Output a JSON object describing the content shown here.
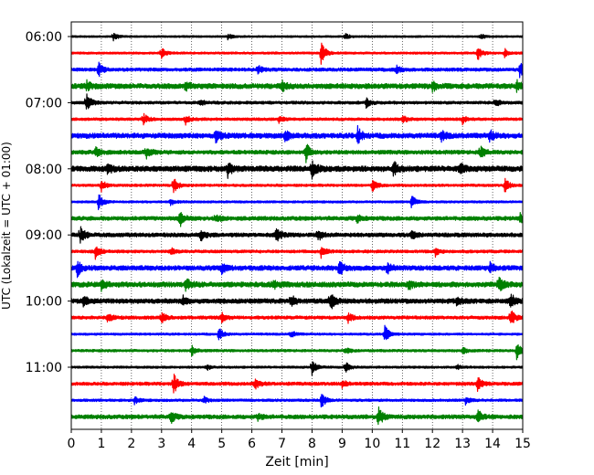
{
  "chart_data": {
    "type": "line",
    "title": "",
    "xlabel": "Zeit  [min]",
    "ylabel": "UTC (Lokalzeit = UTC + 01:00)",
    "xlim": [
      0,
      15
    ],
    "x_ticks": [
      0,
      1,
      2,
      3,
      4,
      5,
      6,
      7,
      8,
      9,
      10,
      11,
      12,
      13,
      14,
      15
    ],
    "x_tick_labels": [
      "0",
      "1",
      "2",
      "3",
      "4",
      "5",
      "6",
      "7",
      "8",
      "9",
      "10",
      "11",
      "12",
      "13",
      "14",
      "15"
    ],
    "grid": "vertical-dotted",
    "row_interval_min": 15,
    "y_ticks": [
      {
        "row": 0,
        "label": "06:00"
      },
      {
        "row": 4,
        "label": "07:00"
      },
      {
        "row": 8,
        "label": "08:00"
      },
      {
        "row": 12,
        "label": "09:00"
      },
      {
        "row": 16,
        "label": "10:00"
      },
      {
        "row": 20,
        "label": "11:00"
      }
    ],
    "color_cycle": [
      "#000000",
      "#ff0000",
      "#0000ff",
      "#008000"
    ],
    "traces": [
      {
        "start": "06:00",
        "noise": 0.1,
        "events": [
          [
            1.4,
            0.4
          ],
          [
            5.2,
            0.3
          ],
          [
            9.1,
            0.3
          ],
          [
            13.6,
            0.3
          ]
        ]
      },
      {
        "start": "06:15",
        "noise": 0.12,
        "events": [
          [
            3.0,
            0.6
          ],
          [
            8.3,
            1.3
          ],
          [
            13.5,
            0.8
          ],
          [
            14.4,
            0.5
          ]
        ]
      },
      {
        "start": "06:30",
        "noise": 0.18,
        "events": [
          [
            0.9,
            0.8
          ],
          [
            6.2,
            0.4
          ],
          [
            10.8,
            0.4
          ],
          [
            14.9,
            0.8
          ]
        ]
      },
      {
        "start": "06:45",
        "noise": 0.28,
        "events": [
          [
            0.5,
            0.5
          ],
          [
            3.8,
            0.5
          ],
          [
            7.0,
            0.5
          ],
          [
            12.0,
            0.5
          ],
          [
            14.8,
            0.5
          ]
        ]
      },
      {
        "start": "07:00",
        "noise": 0.16,
        "events": [
          [
            0.5,
            1.2
          ],
          [
            4.3,
            0.4
          ],
          [
            9.8,
            0.5
          ],
          [
            14.1,
            0.4
          ]
        ]
      },
      {
        "start": "07:15",
        "noise": 0.15,
        "events": [
          [
            2.4,
            0.6
          ],
          [
            3.8,
            0.5
          ],
          [
            6.9,
            0.4
          ],
          [
            11.0,
            0.5
          ],
          [
            13.0,
            0.5
          ]
        ]
      },
      {
        "start": "07:30",
        "noise": 0.28,
        "events": [
          [
            4.8,
            0.7
          ],
          [
            7.1,
            0.5
          ],
          [
            9.5,
            1.0
          ],
          [
            12.3,
            0.5
          ],
          [
            13.9,
            0.6
          ]
        ]
      },
      {
        "start": "07:45",
        "noise": 0.22,
        "events": [
          [
            0.8,
            0.6
          ],
          [
            2.5,
            0.7
          ],
          [
            7.8,
            1.0
          ],
          [
            13.6,
            0.8
          ]
        ]
      },
      {
        "start": "08:00",
        "noise": 0.3,
        "events": [
          [
            1.2,
            0.6
          ],
          [
            5.2,
            0.8
          ],
          [
            8.0,
            1.0
          ],
          [
            10.7,
            0.8
          ],
          [
            12.9,
            0.6
          ]
        ]
      },
      {
        "start": "08:15",
        "noise": 0.14,
        "events": [
          [
            1.0,
            0.6
          ],
          [
            3.4,
            1.0
          ],
          [
            10.0,
            0.8
          ],
          [
            14.4,
            0.8
          ]
        ]
      },
      {
        "start": "08:30",
        "noise": 0.12,
        "events": [
          [
            0.9,
            1.0
          ],
          [
            3.3,
            0.4
          ],
          [
            11.3,
            0.8
          ]
        ]
      },
      {
        "start": "08:45",
        "noise": 0.22,
        "events": [
          [
            3.6,
            0.9
          ],
          [
            4.8,
            0.5
          ],
          [
            9.5,
            0.4
          ],
          [
            14.9,
            0.5
          ]
        ]
      },
      {
        "start": "09:00",
        "noise": 0.22,
        "events": [
          [
            0.3,
            0.9
          ],
          [
            4.3,
            0.6
          ],
          [
            6.8,
            1.0
          ],
          [
            8.2,
            0.6
          ],
          [
            11.3,
            0.6
          ]
        ]
      },
      {
        "start": "09:15",
        "noise": 0.16,
        "events": [
          [
            0.8,
            0.8
          ],
          [
            3.3,
            0.4
          ],
          [
            8.3,
            0.6
          ],
          [
            12.1,
            0.5
          ]
        ]
      },
      {
        "start": "09:30",
        "noise": 0.26,
        "events": [
          [
            0.2,
            0.9
          ],
          [
            5.0,
            0.6
          ],
          [
            8.9,
            0.9
          ],
          [
            10.5,
            0.8
          ],
          [
            13.9,
            0.6
          ]
        ]
      },
      {
        "start": "09:45",
        "noise": 0.28,
        "events": [
          [
            1.0,
            0.5
          ],
          [
            3.8,
            0.8
          ],
          [
            6.7,
            0.5
          ],
          [
            11.2,
            0.5
          ],
          [
            14.2,
            0.8
          ]
        ]
      },
      {
        "start": "10:00",
        "noise": 0.26,
        "events": [
          [
            0.4,
            0.6
          ],
          [
            3.7,
            0.5
          ],
          [
            7.3,
            0.6
          ],
          [
            8.6,
            1.0
          ],
          [
            12.8,
            0.5
          ],
          [
            14.6,
            0.8
          ]
        ]
      },
      {
        "start": "10:15",
        "noise": 0.18,
        "events": [
          [
            1.2,
            0.6
          ],
          [
            3.0,
            0.6
          ],
          [
            5.0,
            0.5
          ],
          [
            9.2,
            0.5
          ],
          [
            14.6,
            1.0
          ]
        ]
      },
      {
        "start": "10:30",
        "noise": 0.12,
        "events": [
          [
            4.9,
            0.8
          ],
          [
            7.3,
            0.4
          ],
          [
            10.4,
            1.1
          ]
        ]
      },
      {
        "start": "10:45",
        "noise": 0.14,
        "events": [
          [
            4.0,
            0.6
          ],
          [
            9.1,
            0.4
          ],
          [
            13.0,
            0.3
          ],
          [
            14.8,
            1.0
          ]
        ]
      },
      {
        "start": "11:00",
        "noise": 0.12,
        "events": [
          [
            4.5,
            0.3
          ],
          [
            8.0,
            0.8
          ],
          [
            9.1,
            0.6
          ],
          [
            12.8,
            0.3
          ]
        ]
      },
      {
        "start": "11:15",
        "noise": 0.18,
        "events": [
          [
            3.4,
            1.1
          ],
          [
            6.1,
            0.6
          ],
          [
            9.0,
            0.4
          ],
          [
            13.5,
            0.8
          ]
        ]
      },
      {
        "start": "11:30",
        "noise": 0.14,
        "events": [
          [
            2.1,
            0.4
          ],
          [
            4.4,
            0.4
          ],
          [
            8.3,
            0.9
          ],
          [
            13.1,
            0.4
          ]
        ]
      },
      {
        "start": "11:45",
        "noise": 0.22,
        "events": [
          [
            3.3,
            0.7
          ],
          [
            6.2,
            0.4
          ],
          [
            10.2,
            1.1
          ],
          [
            13.5,
            0.8
          ]
        ]
      }
    ]
  }
}
